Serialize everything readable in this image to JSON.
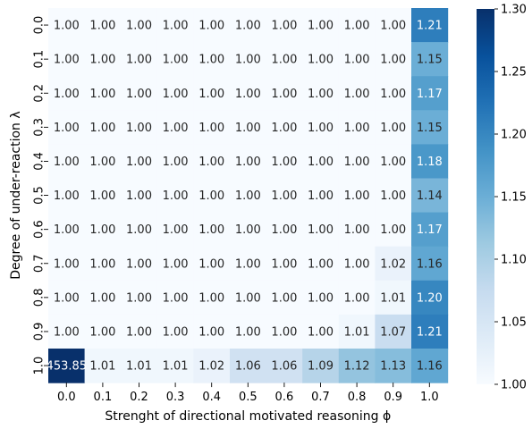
{
  "chart_data": {
    "type": "heatmap",
    "xlabel": "Strenght of directional motivated reasoning ϕ",
    "ylabel": "Degree of under-reaction λ",
    "x_categories": [
      "0.0",
      "0.1",
      "0.2",
      "0.3",
      "0.4",
      "0.5",
      "0.6",
      "0.7",
      "0.8",
      "0.9",
      "1.0"
    ],
    "y_categories": [
      "0.0",
      "0.1",
      "0.2",
      "0.3",
      "0.4",
      "0.5",
      "0.6",
      "0.7",
      "0.8",
      "0.9",
      "1.0"
    ],
    "values": [
      [
        1.0,
        1.0,
        1.0,
        1.0,
        1.0,
        1.0,
        1.0,
        1.0,
        1.0,
        1.0,
        1.21
      ],
      [
        1.0,
        1.0,
        1.0,
        1.0,
        1.0,
        1.0,
        1.0,
        1.0,
        1.0,
        1.0,
        1.15
      ],
      [
        1.0,
        1.0,
        1.0,
        1.0,
        1.0,
        1.0,
        1.0,
        1.0,
        1.0,
        1.0,
        1.17
      ],
      [
        1.0,
        1.0,
        1.0,
        1.0,
        1.0,
        1.0,
        1.0,
        1.0,
        1.0,
        1.0,
        1.15
      ],
      [
        1.0,
        1.0,
        1.0,
        1.0,
        1.0,
        1.0,
        1.0,
        1.0,
        1.0,
        1.0,
        1.18
      ],
      [
        1.0,
        1.0,
        1.0,
        1.0,
        1.0,
        1.0,
        1.0,
        1.0,
        1.0,
        1.0,
        1.14
      ],
      [
        1.0,
        1.0,
        1.0,
        1.0,
        1.0,
        1.0,
        1.0,
        1.0,
        1.0,
        1.0,
        1.17
      ],
      [
        1.0,
        1.0,
        1.0,
        1.0,
        1.0,
        1.0,
        1.0,
        1.0,
        1.0,
        1.02,
        1.16
      ],
      [
        1.0,
        1.0,
        1.0,
        1.0,
        1.0,
        1.0,
        1.0,
        1.0,
        1.0,
        1.01,
        1.2
      ],
      [
        1.0,
        1.0,
        1.0,
        1.0,
        1.0,
        1.0,
        1.0,
        1.0,
        1.01,
        1.07,
        1.21
      ],
      [
        453.85,
        1.01,
        1.01,
        1.01,
        1.02,
        1.06,
        1.06,
        1.09,
        1.12,
        1.13,
        1.16
      ]
    ],
    "value_labels": [
      [
        "1.00",
        "1.00",
        "1.00",
        "1.00",
        "1.00",
        "1.00",
        "1.00",
        "1.00",
        "1.00",
        "1.00",
        "1.21"
      ],
      [
        "1.00",
        "1.00",
        "1.00",
        "1.00",
        "1.00",
        "1.00",
        "1.00",
        "1.00",
        "1.00",
        "1.00",
        "1.15"
      ],
      [
        "1.00",
        "1.00",
        "1.00",
        "1.00",
        "1.00",
        "1.00",
        "1.00",
        "1.00",
        "1.00",
        "1.00",
        "1.17"
      ],
      [
        "1.00",
        "1.00",
        "1.00",
        "1.00",
        "1.00",
        "1.00",
        "1.00",
        "1.00",
        "1.00",
        "1.00",
        "1.15"
      ],
      [
        "1.00",
        "1.00",
        "1.00",
        "1.00",
        "1.00",
        "1.00",
        "1.00",
        "1.00",
        "1.00",
        "1.00",
        "1.18"
      ],
      [
        "1.00",
        "1.00",
        "1.00",
        "1.00",
        "1.00",
        "1.00",
        "1.00",
        "1.00",
        "1.00",
        "1.00",
        "1.14"
      ],
      [
        "1.00",
        "1.00",
        "1.00",
        "1.00",
        "1.00",
        "1.00",
        "1.00",
        "1.00",
        "1.00",
        "1.00",
        "1.17"
      ],
      [
        "1.00",
        "1.00",
        "1.00",
        "1.00",
        "1.00",
        "1.00",
        "1.00",
        "1.00",
        "1.00",
        "1.02",
        "1.16"
      ],
      [
        "1.00",
        "1.00",
        "1.00",
        "1.00",
        "1.00",
        "1.00",
        "1.00",
        "1.00",
        "1.00",
        "1.01",
        "1.20"
      ],
      [
        "1.00",
        "1.00",
        "1.00",
        "1.00",
        "1.00",
        "1.00",
        "1.00",
        "1.00",
        "1.01",
        "1.07",
        "1.21"
      ],
      [
        "453.85",
        "1.01",
        "1.01",
        "1.01",
        "1.02",
        "1.06",
        "1.06",
        "1.09",
        "1.12",
        "1.13",
        "1.16"
      ]
    ],
    "colorbar": {
      "vmin": 1.0,
      "vmax": 1.3,
      "ticks": [
        "1.00",
        "1.05",
        "1.10",
        "1.15",
        "1.20",
        "1.25",
        "1.30"
      ],
      "colormap": "Blues",
      "stops": [
        "#f7fbff",
        "#deebf7",
        "#c6dbef",
        "#9ecae1",
        "#6baed6",
        "#4292c6",
        "#2171b5",
        "#08519c",
        "#08306b"
      ]
    },
    "grid": false,
    "legend": "none"
  }
}
